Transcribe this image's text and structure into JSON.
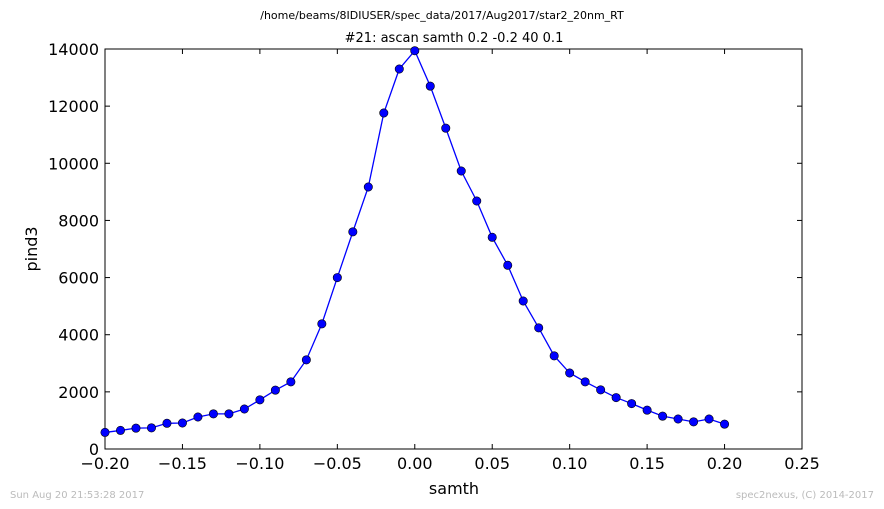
{
  "suptitle": "/home/beams/8IDIUSER/spec_data/2017/Aug2017/star2_20nm_RT",
  "footer": {
    "timestamp": "Sun Aug 20 21:53:28 2017",
    "credit": "spec2nexus, (C) 2014-2017"
  },
  "chart_data": {
    "type": "line",
    "title": "#21: ascan  samth 0.2 -0.2  40 0.1",
    "xlabel": "samth",
    "ylabel": "pind3",
    "xlim": [
      -0.2,
      0.25
    ],
    "ylim": [
      0,
      14000
    ],
    "xticks": [
      -0.2,
      -0.15,
      -0.1,
      -0.05,
      0.0,
      0.05,
      0.1,
      0.15,
      0.2,
      0.25
    ],
    "xtick_labels": [
      "−0.20",
      "−0.15",
      "−0.10",
      "−0.05",
      "0.00",
      "0.05",
      "0.10",
      "0.15",
      "0.20",
      "0.25"
    ],
    "yticks": [
      0,
      2000,
      4000,
      6000,
      8000,
      10000,
      12000,
      14000
    ],
    "ytick_labels": [
      "0",
      "2000",
      "4000",
      "6000",
      "8000",
      "10000",
      "12000",
      "14000"
    ],
    "grid": false,
    "line_color": "#0000ff",
    "marker": "circle",
    "x": [
      -0.2,
      -0.19,
      -0.18,
      -0.17,
      -0.16,
      -0.15,
      -0.14,
      -0.13,
      -0.12,
      -0.11,
      -0.1,
      -0.09,
      -0.08,
      -0.07,
      -0.06,
      -0.05,
      -0.04,
      -0.03,
      -0.02,
      -0.01,
      0.0,
      0.01,
      0.02,
      0.03,
      0.04,
      0.05,
      0.06,
      0.07,
      0.08,
      0.09,
      0.1,
      0.11,
      0.12,
      0.13,
      0.14,
      0.15,
      0.16,
      0.17,
      0.18,
      0.19,
      0.2
    ],
    "y": [
      580,
      650,
      730,
      740,
      900,
      910,
      1120,
      1230,
      1230,
      1400,
      1720,
      2060,
      2350,
      3120,
      4380,
      6000,
      7600,
      9170,
      11760,
      13300,
      13940,
      12700,
      11230,
      9730,
      8680,
      7410,
      6430,
      5180,
      4240,
      3260,
      2660,
      2350,
      2070,
      1800,
      1590,
      1360,
      1150,
      1050,
      950,
      1050,
      870
    ]
  }
}
